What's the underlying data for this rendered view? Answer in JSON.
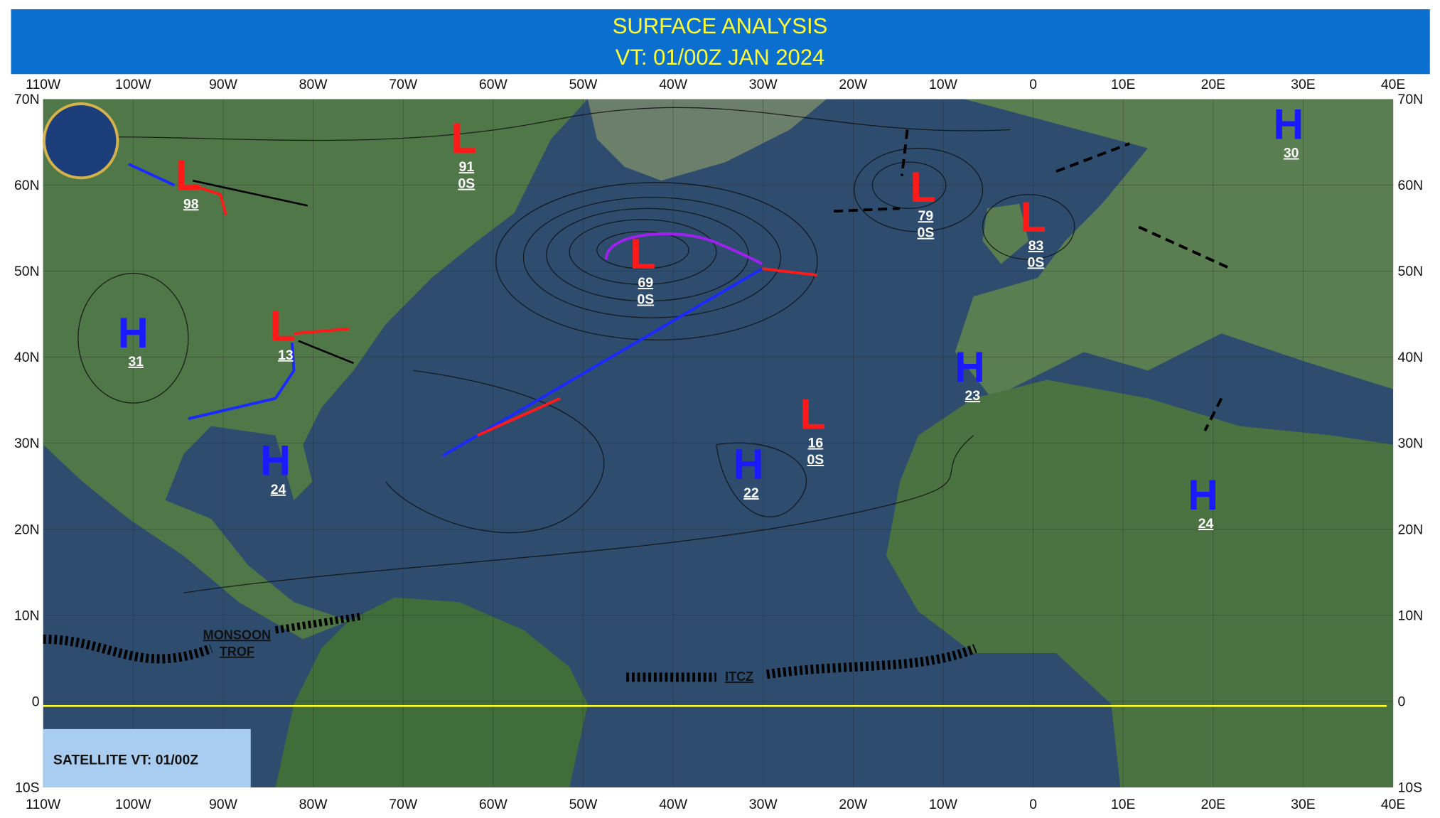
{
  "header": {
    "title": "SURFACE ANALYSIS",
    "subtitle": "VT: 01/00Z JAN 2024"
  },
  "longitudes": [
    "110W",
    "100W",
    "90W",
    "80W",
    "70W",
    "60W",
    "50W",
    "40W",
    "30W",
    "20W",
    "10W",
    "0",
    "10E",
    "20E",
    "30E",
    "40E"
  ],
  "latitudes": [
    "70N",
    "60N",
    "50N",
    "40N",
    "30N",
    "20N",
    "10N",
    "0",
    "10S"
  ],
  "systems": [
    {
      "type": "L",
      "pressure": "98"
    },
    {
      "type": "L",
      "pressure": "91",
      "motion": "0S"
    },
    {
      "type": "L",
      "pressure": "13"
    },
    {
      "type": "H",
      "pressure": "31"
    },
    {
      "type": "H",
      "pressure": "24"
    },
    {
      "type": "L",
      "pressure": "69",
      "motion": "0S"
    },
    {
      "type": "L",
      "pressure": "79",
      "motion": "0S"
    },
    {
      "type": "L",
      "pressure": "83",
      "motion": "0S"
    },
    {
      "type": "H",
      "pressure": "30"
    },
    {
      "type": "H",
      "pressure": "23"
    },
    {
      "type": "L",
      "pressure": "16",
      "motion": "0S"
    },
    {
      "type": "H",
      "pressure": "22"
    },
    {
      "type": "H",
      "pressure": "24"
    }
  ],
  "annotations": {
    "monsoon": "MONSOON",
    "trof": "TROF",
    "itcz": "ITCZ"
  },
  "satellite_note": "SATELLITE VT: 01/00Z"
}
